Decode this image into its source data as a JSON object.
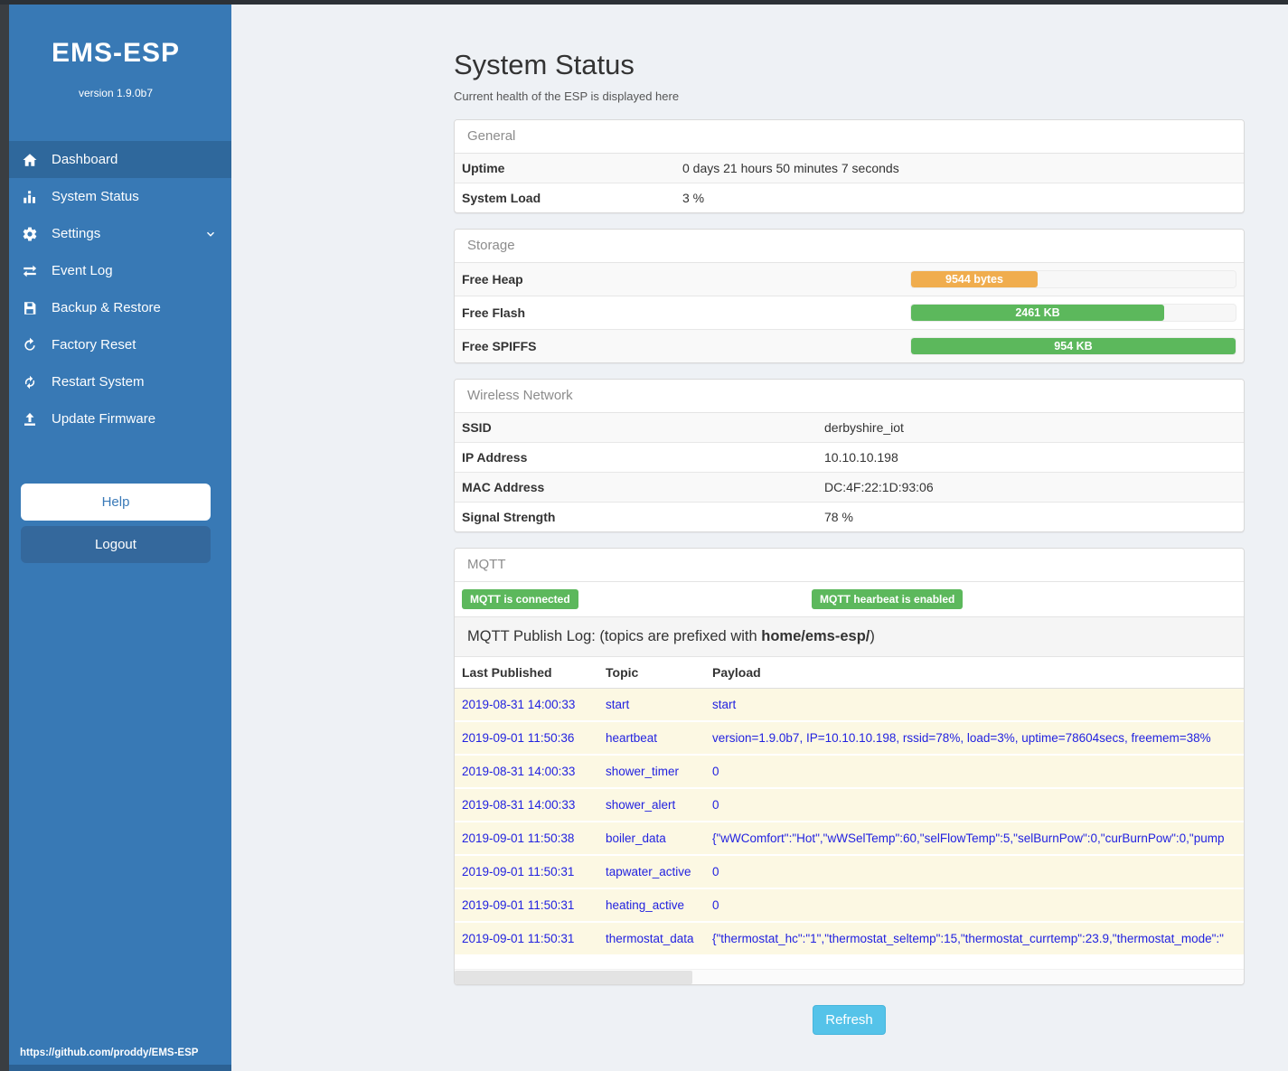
{
  "sidebar": {
    "title": "EMS-ESP",
    "version": "version 1.9.0b7",
    "nav": [
      {
        "id": "dashboard",
        "label": "Dashboard",
        "icon": "home",
        "active": true
      },
      {
        "id": "system-status",
        "label": "System Status",
        "icon": "status"
      },
      {
        "id": "settings",
        "label": "Settings",
        "icon": "gear",
        "chevron": true
      },
      {
        "id": "event-log",
        "label": "Event Log",
        "icon": "exchange"
      },
      {
        "id": "backup-restore",
        "label": "Backup & Restore",
        "icon": "save"
      },
      {
        "id": "factory-reset",
        "label": "Factory Reset",
        "icon": "reset"
      },
      {
        "id": "restart-system",
        "label": "Restart System",
        "icon": "restart"
      },
      {
        "id": "update-firmware",
        "label": "Update Firmware",
        "icon": "upload"
      }
    ],
    "help_label": "Help",
    "logout_label": "Logout",
    "footer_link": "https://github.com/proddy/EMS-ESP"
  },
  "page": {
    "title": "System Status",
    "subtitle": "Current health of the ESP is displayed here",
    "refresh_label": "Refresh"
  },
  "colors": {
    "sidebar": "#3879b5",
    "badge_green": "#5cb85c",
    "bar_orange": "#f0ad4e",
    "bar_green": "#5cb85c",
    "refresh_blue": "#55c3e9",
    "mqtt_text_blue": "#2222e0",
    "mqtt_row_bg": "#fcf8e3"
  },
  "panels": {
    "general": {
      "title": "General",
      "rows": [
        {
          "label": "Uptime",
          "value": "0 days 21 hours 50 minutes 7 seconds"
        },
        {
          "label": "System Load",
          "value": "3 %"
        }
      ]
    },
    "storage": {
      "title": "Storage",
      "rows": [
        {
          "label": "Free Heap",
          "value": "9544 bytes",
          "percent": 39,
          "color": "#f0ad4e"
        },
        {
          "label": "Free Flash",
          "value": "2461 KB",
          "percent": 78,
          "color": "#5cb85c"
        },
        {
          "label": "Free SPIFFS",
          "value": "954 KB",
          "percent": 100,
          "color": "#5cb85c"
        }
      ]
    },
    "wireless": {
      "title": "Wireless Network",
      "rows": [
        {
          "label": "SSID",
          "value": "derbyshire_iot"
        },
        {
          "label": "IP Address",
          "value": "10.10.10.198"
        },
        {
          "label": "MAC Address",
          "value": "DC:4F:22:1D:93:06"
        },
        {
          "label": "Signal Strength",
          "value": "78 %"
        }
      ]
    },
    "mqtt": {
      "title": "MQTT",
      "badges": [
        "MQTT is connected",
        "MQTT hearbeat is enabled"
      ],
      "log": {
        "prefix": "MQTT Publish Log: (topics are prefixed with ",
        "bold": "home/ems-esp/",
        "suffix": ")"
      },
      "table": {
        "columns": [
          "Last Published",
          "Topic",
          "Payload"
        ],
        "rows": [
          {
            "time": "2019-08-31 14:00:33",
            "topic": "start",
            "payload": "start"
          },
          {
            "time": "2019-09-01 11:50:36",
            "topic": "heartbeat",
            "payload": "version=1.9.0b7, IP=10.10.10.198, rssid=78%, load=3%, uptime=78604secs, freemem=38%"
          },
          {
            "time": "2019-08-31 14:00:33",
            "topic": "shower_timer",
            "payload": "0"
          },
          {
            "time": "2019-08-31 14:00:33",
            "topic": "shower_alert",
            "payload": "0"
          },
          {
            "time": "2019-09-01 11:50:38",
            "topic": "boiler_data",
            "payload": "{\"wWComfort\":\"Hot\",\"wWSelTemp\":60,\"selFlowTemp\":5,\"selBurnPow\":0,\"curBurnPow\":0,\"pump"
          },
          {
            "time": "2019-09-01 11:50:31",
            "topic": "tapwater_active",
            "payload": "0"
          },
          {
            "time": "2019-09-01 11:50:31",
            "topic": "heating_active",
            "payload": "0"
          },
          {
            "time": "2019-09-01 11:50:31",
            "topic": "thermostat_data",
            "payload": "{\"thermostat_hc\":\"1\",\"thermostat_seltemp\":15,\"thermostat_currtemp\":23.9,\"thermostat_mode\":\""
          }
        ]
      }
    }
  }
}
